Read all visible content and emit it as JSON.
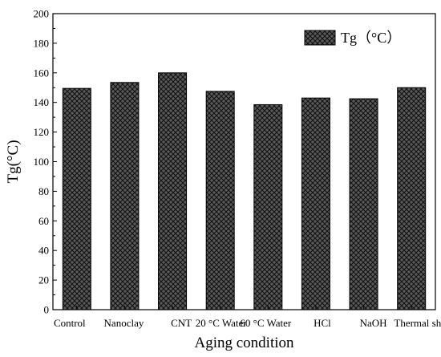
{
  "chart_data": {
    "type": "bar",
    "categories": [
      "Control",
      "Nanoclay",
      "CNT",
      "20 °C Water",
      "60 °C Water",
      "HCl",
      "NaOH",
      "Thermal shock"
    ],
    "series": [
      {
        "name": "Tg（°C）",
        "values": [
          149.5,
          153.5,
          160,
          147.5,
          138.5,
          143,
          142.5,
          150
        ]
      }
    ],
    "xlabel": "Aging condition",
    "ylabel": "Tg(°C)",
    "ylim": [
      0,
      200
    ],
    "yticks": [
      0,
      20,
      40,
      60,
      80,
      100,
      120,
      140,
      160,
      180,
      200
    ],
    "grid": false,
    "legend": "top-right",
    "colors": {
      "bar_fill": "#555555",
      "hatch": "#000000",
      "axis": "#000000"
    }
  }
}
